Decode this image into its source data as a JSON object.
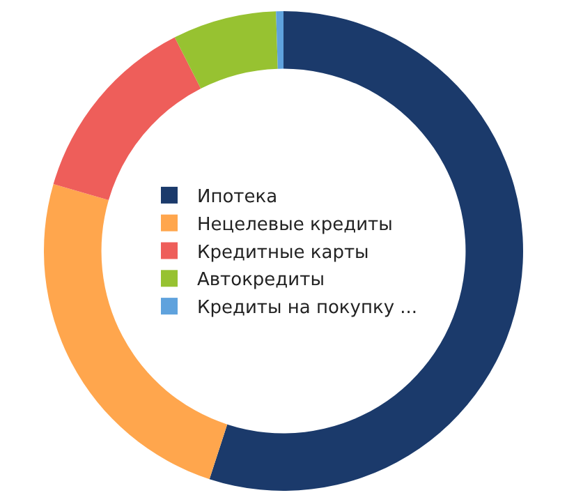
{
  "chart_data": {
    "type": "donut",
    "categories": [
      "Ипотека",
      "Нецелевые кредиты",
      "Кредитные карты",
      "Автокредиты",
      "Кредиты на покупку ..."
    ],
    "values": [
      55,
      24.5,
      13,
      7,
      0.5
    ],
    "colors": [
      "#1b3a6b",
      "#ffa64d",
      "#ee5e5a",
      "#97c231",
      "#5fa2dd"
    ],
    "legend": "center"
  }
}
